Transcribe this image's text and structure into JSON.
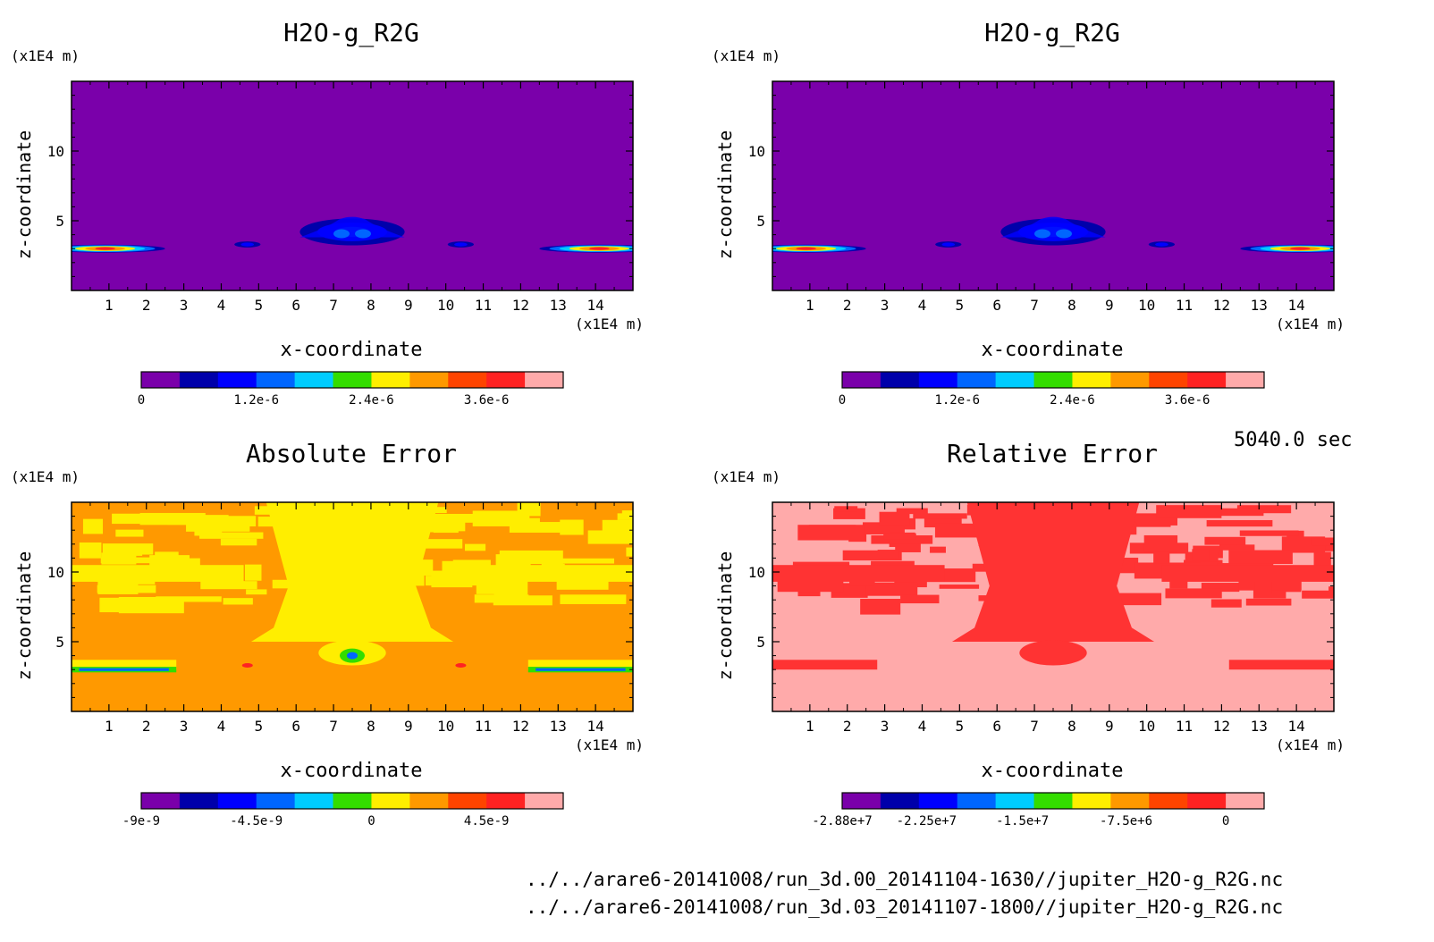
{
  "time_label": "5040.0 sec",
  "file_paths": [
    "../../arare6-20141008/run_3d.00_20141104-1630//jupiter_H2O-g_R2G.nc",
    "../../arare6-20141008/run_3d.03_20141107-1800//jupiter_H2O-g_R2G.nc"
  ],
  "chart_data": [
    {
      "type": "heatmap",
      "title": "H2O-g_R2G",
      "xlabel": "x-coordinate",
      "ylabel": "z-coordinate",
      "x_unit": "(x1E4 m)",
      "y_unit": "(x1E4 m)",
      "xlim": [
        0,
        15
      ],
      "ylim": [
        0,
        15
      ],
      "x_ticks": [
        1,
        2,
        3,
        4,
        5,
        6,
        7,
        8,
        9,
        10,
        11,
        12,
        13,
        14
      ],
      "y_ticks": [
        5,
        10
      ],
      "background_level": 0,
      "colorbar": {
        "colors": [
          "#7a00aa",
          "#0000aa",
          "#0000ff",
          "#0066ff",
          "#00ccff",
          "#33dd00",
          "#ffee00",
          "#ff9900",
          "#ff4400",
          "#ff2222",
          "#ffaaaa"
        ],
        "tick_labels": [
          "0",
          "1.2e-6",
          "2.4e-6",
          "3.6e-6"
        ],
        "tick_positions": [
          0,
          3,
          6,
          9
        ]
      },
      "features": [
        {
          "x": 0.9,
          "z": 3.0,
          "rx": 1.6,
          "rz": 0.22,
          "peak": 4.2e-06
        },
        {
          "x": 14.1,
          "z": 3.0,
          "rx": 1.6,
          "rz": 0.22,
          "peak": 4.2e-06
        },
        {
          "x": 4.7,
          "z": 3.3,
          "rx": 0.35,
          "rz": 0.15,
          "peak": 1e-06
        },
        {
          "x": 10.4,
          "z": 3.3,
          "rx": 0.35,
          "rz": 0.15,
          "peak": 1e-06
        },
        {
          "x": 7.5,
          "z": 4.2,
          "rx": 1.4,
          "rz": 0.9,
          "peak": 1.5e-06
        }
      ]
    },
    {
      "type": "heatmap",
      "title": "H2O-g_R2G",
      "xlabel": "x-coordinate",
      "ylabel": "z-coordinate",
      "x_unit": "(x1E4 m)",
      "y_unit": "(x1E4 m)",
      "xlim": [
        0,
        15
      ],
      "ylim": [
        0,
        15
      ],
      "x_ticks": [
        1,
        2,
        3,
        4,
        5,
        6,
        7,
        8,
        9,
        10,
        11,
        12,
        13,
        14
      ],
      "y_ticks": [
        5,
        10
      ],
      "background_level": 0,
      "colorbar": {
        "colors": [
          "#7a00aa",
          "#0000aa",
          "#0000ff",
          "#0066ff",
          "#00ccff",
          "#33dd00",
          "#ffee00",
          "#ff9900",
          "#ff4400",
          "#ff2222",
          "#ffaaaa"
        ],
        "tick_labels": [
          "0",
          "1.2e-6",
          "2.4e-6",
          "3.6e-6"
        ],
        "tick_positions": [
          0,
          3,
          6,
          9
        ]
      },
      "features": [
        {
          "x": 0.9,
          "z": 3.0,
          "rx": 1.6,
          "rz": 0.22,
          "peak": 4.2e-06
        },
        {
          "x": 14.1,
          "z": 3.0,
          "rx": 1.6,
          "rz": 0.22,
          "peak": 4.2e-06
        },
        {
          "x": 4.7,
          "z": 3.3,
          "rx": 0.35,
          "rz": 0.15,
          "peak": 1e-06
        },
        {
          "x": 10.4,
          "z": 3.3,
          "rx": 0.35,
          "rz": 0.15,
          "peak": 1e-06
        },
        {
          "x": 7.5,
          "z": 4.2,
          "rx": 1.4,
          "rz": 0.9,
          "peak": 1.5e-06
        }
      ]
    },
    {
      "type": "heatmap",
      "title": "Absolute Error",
      "xlabel": "x-coordinate",
      "ylabel": "z-coordinate",
      "x_unit": "(x1E4 m)",
      "y_unit": "(x1E4 m)",
      "xlim": [
        0,
        15
      ],
      "ylim": [
        0,
        15
      ],
      "x_ticks": [
        1,
        2,
        3,
        4,
        5,
        6,
        7,
        8,
        9,
        10,
        11,
        12,
        13,
        14
      ],
      "y_ticks": [
        5,
        10
      ],
      "background_level": 0,
      "dominant_colors": [
        "#ff9900",
        "#ffee00"
      ],
      "colorbar": {
        "colors": [
          "#7a00aa",
          "#0000aa",
          "#0000ff",
          "#0066ff",
          "#00ccff",
          "#33dd00",
          "#ffee00",
          "#ff9900",
          "#ff4400",
          "#ff2222",
          "#ffaaaa"
        ],
        "tick_labels": [
          "-9e-9",
          "-4.5e-9",
          "0",
          "4.5e-9"
        ],
        "tick_positions": [
          0,
          3,
          6,
          9
        ]
      }
    },
    {
      "type": "heatmap",
      "title": "Relative Error",
      "xlabel": "x-coordinate",
      "ylabel": "z-coordinate",
      "x_unit": "(x1E4 m)",
      "y_unit": "(x1E4 m)",
      "xlim": [
        0,
        15
      ],
      "ylim": [
        0,
        15
      ],
      "x_ticks": [
        1,
        2,
        3,
        4,
        5,
        6,
        7,
        8,
        9,
        10,
        11,
        12,
        13,
        14
      ],
      "y_ticks": [
        5,
        10
      ],
      "dominant_colors": [
        "#ffaaaa",
        "#ff3333"
      ],
      "colorbar": {
        "colors": [
          "#7a00aa",
          "#0000aa",
          "#0000ff",
          "#0066ff",
          "#00ccff",
          "#33dd00",
          "#ffee00",
          "#ff9900",
          "#ff4400",
          "#ff2222",
          "#ffaaaa"
        ],
        "tick_labels": [
          "-2.88e+7",
          "-2.25e+7",
          "-1.5e+7",
          "-7.5e+6",
          "0"
        ],
        "tick_positions": [
          0,
          2.2,
          4.7,
          7.4,
          10
        ]
      }
    }
  ]
}
